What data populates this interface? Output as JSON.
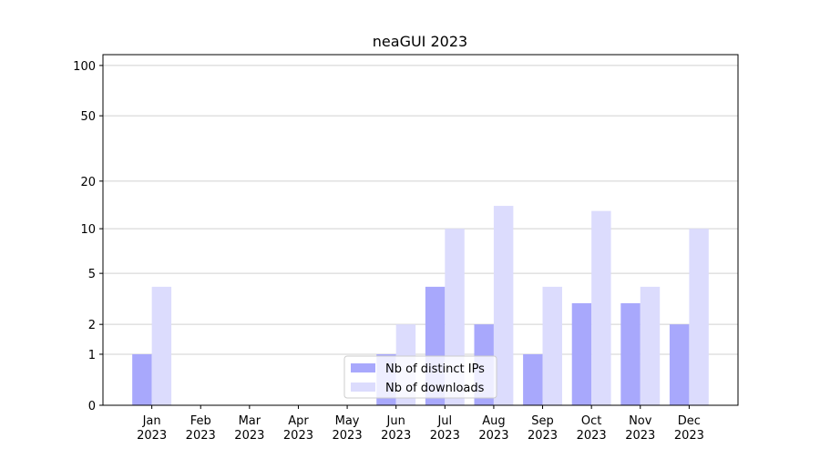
{
  "chart_data": {
    "type": "bar",
    "title": "neaGUI 2023",
    "categories": [
      [
        "Jan",
        "2023"
      ],
      [
        "Feb",
        "2023"
      ],
      [
        "Mar",
        "2023"
      ],
      [
        "Apr",
        "2023"
      ],
      [
        "May",
        "2023"
      ],
      [
        "Jun",
        "2023"
      ],
      [
        "Jul",
        "2023"
      ],
      [
        "Aug",
        "2023"
      ],
      [
        "Sep",
        "2023"
      ],
      [
        "Oct",
        "2023"
      ],
      [
        "Nov",
        "2023"
      ],
      [
        "Dec",
        "2023"
      ]
    ],
    "series": [
      {
        "name": "Nb of distinct IPs",
        "color": "#a8a8fc",
        "values": [
          1,
          0,
          0,
          0,
          0,
          1,
          4,
          2,
          1,
          3,
          3,
          2
        ]
      },
      {
        "name": "Nb of downloads",
        "color": "#dcdcfd",
        "values": [
          4,
          0,
          0,
          0,
          0,
          2,
          10,
          14,
          4,
          13,
          4,
          10
        ]
      }
    ],
    "y_scale": "log1p",
    "ylim": [
      0,
      116
    ],
    "yticks": [
      0,
      1,
      2,
      5,
      10,
      20,
      50,
      100
    ],
    "grid": true,
    "legend": "lower center"
  }
}
